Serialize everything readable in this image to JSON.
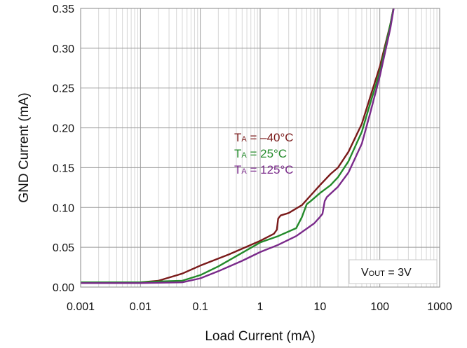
{
  "chart_data": {
    "type": "line",
    "title": "",
    "xlabel": "Load Current (mA)",
    "ylabel": "GND Current (mA)",
    "x_scale": "log",
    "xlim": [
      0.001,
      1000
    ],
    "ylim": [
      0,
      0.35
    ],
    "grid": true,
    "x_ticks": [
      "0.001",
      "0.01",
      "0.1",
      "1",
      "10",
      "100",
      "1000"
    ],
    "y_ticks": [
      "0.00",
      "0.05",
      "0.10",
      "0.15",
      "0.20",
      "0.25",
      "0.30",
      "0.35"
    ],
    "annotation": {
      "main": "V",
      "sub": "OUT",
      "rest": " = 3V"
    },
    "legend": [
      {
        "main": "T",
        "sub": "A",
        "rest": " = –40°C",
        "color": "#7a1a1a"
      },
      {
        "main": "T",
        "sub": "A",
        "rest": " = 25°C",
        "color": "#238a2a"
      },
      {
        "main": "T",
        "sub": "A",
        "rest": " = 125°C",
        "color": "#7a2a8a"
      }
    ],
    "series": [
      {
        "color": "#7a1a1a",
        "points": [
          [
            0.001,
            0.006
          ],
          [
            0.005,
            0.006
          ],
          [
            0.01,
            0.006
          ],
          [
            0.02,
            0.008
          ],
          [
            0.05,
            0.017
          ],
          [
            0.1,
            0.027
          ],
          [
            0.3,
            0.041
          ],
          [
            1,
            0.058
          ],
          [
            1.7,
            0.067
          ],
          [
            1.9,
            0.072
          ],
          [
            2.0,
            0.086
          ],
          [
            2.2,
            0.09
          ],
          [
            3,
            0.093
          ],
          [
            5,
            0.103
          ],
          [
            8,
            0.12
          ],
          [
            10,
            0.128
          ],
          [
            15,
            0.142
          ],
          [
            20,
            0.15
          ],
          [
            30,
            0.17
          ],
          [
            50,
            0.205
          ],
          [
            70,
            0.24
          ],
          [
            100,
            0.277
          ],
          [
            150,
            0.33
          ],
          [
            180,
            0.36
          ]
        ]
      },
      {
        "color": "#238a2a",
        "points": [
          [
            0.001,
            0.006
          ],
          [
            0.01,
            0.006
          ],
          [
            0.02,
            0.007
          ],
          [
            0.05,
            0.008
          ],
          [
            0.1,
            0.015
          ],
          [
            0.2,
            0.026
          ],
          [
            0.5,
            0.043
          ],
          [
            1,
            0.056
          ],
          [
            2,
            0.064
          ],
          [
            4,
            0.074
          ],
          [
            5,
            0.088
          ],
          [
            6,
            0.104
          ],
          [
            7,
            0.108
          ],
          [
            10,
            0.118
          ],
          [
            15,
            0.128
          ],
          [
            20,
            0.138
          ],
          [
            30,
            0.158
          ],
          [
            50,
            0.195
          ],
          [
            70,
            0.232
          ],
          [
            100,
            0.27
          ],
          [
            150,
            0.33
          ],
          [
            180,
            0.36
          ]
        ]
      },
      {
        "color": "#7a2a8a",
        "points": [
          [
            0.001,
            0.005
          ],
          [
            0.01,
            0.005
          ],
          [
            0.05,
            0.006
          ],
          [
            0.1,
            0.011
          ],
          [
            0.2,
            0.02
          ],
          [
            0.5,
            0.033
          ],
          [
            1,
            0.044
          ],
          [
            2,
            0.053
          ],
          [
            4,
            0.064
          ],
          [
            8,
            0.08
          ],
          [
            10,
            0.088
          ],
          [
            11,
            0.092
          ],
          [
            12,
            0.108
          ],
          [
            13,
            0.113
          ],
          [
            20,
            0.126
          ],
          [
            30,
            0.144
          ],
          [
            50,
            0.18
          ],
          [
            70,
            0.22
          ],
          [
            100,
            0.265
          ],
          [
            150,
            0.325
          ],
          [
            180,
            0.36
          ]
        ]
      }
    ]
  }
}
